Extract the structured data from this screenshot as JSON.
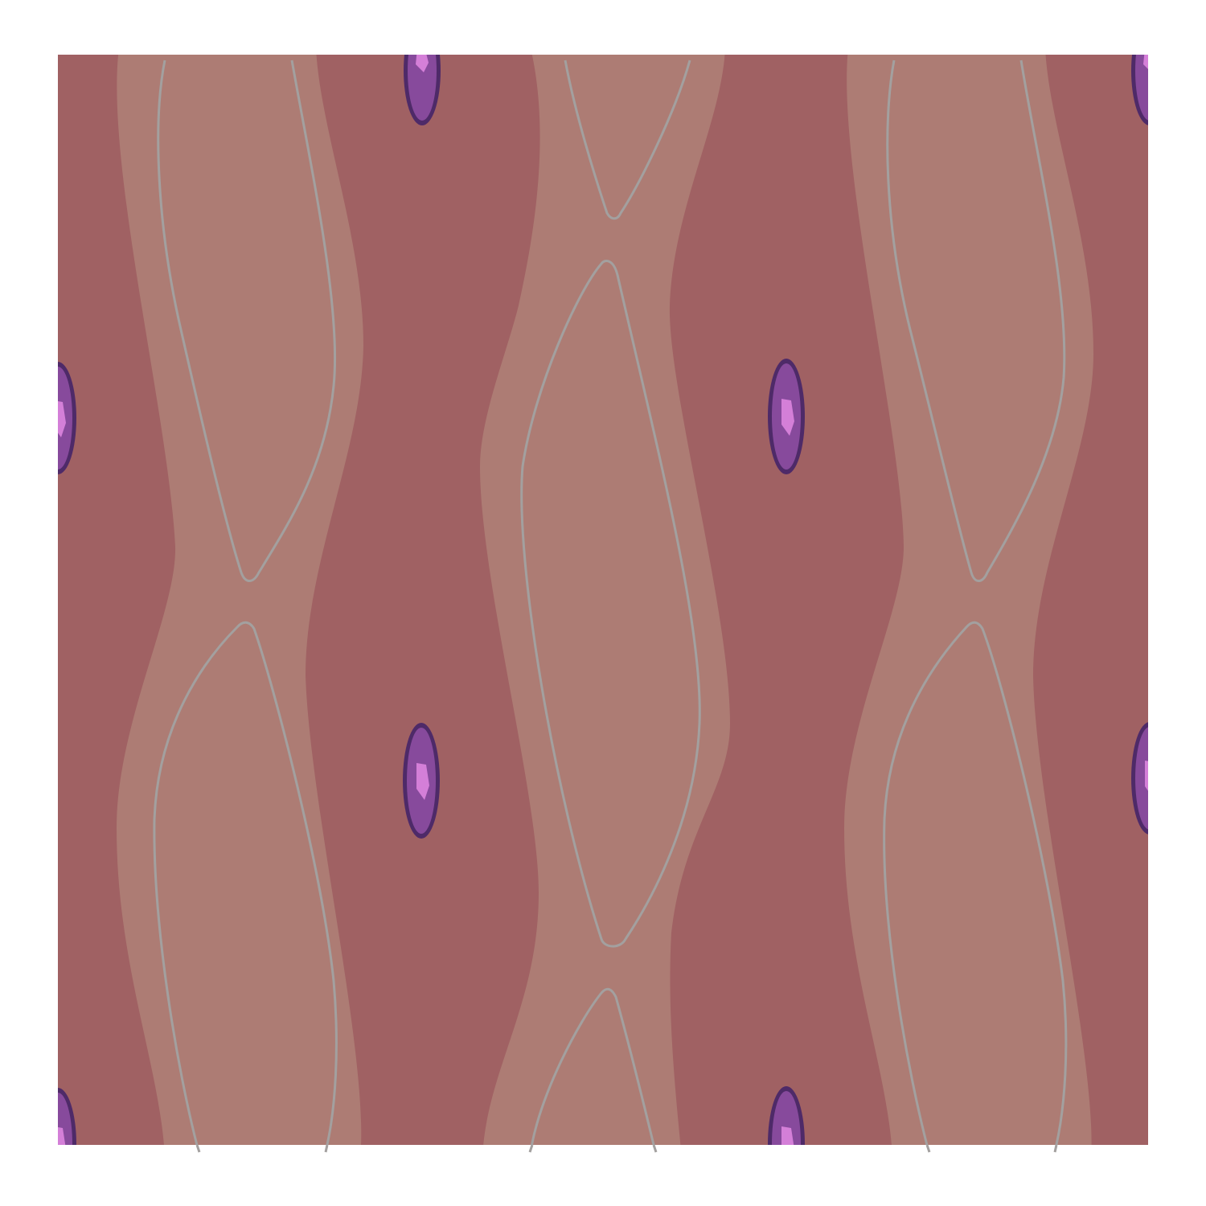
{
  "pattern": {
    "colors": {
      "page_background": "#ffffff",
      "field_background": "#a06163",
      "band_fill": "#ad7c74",
      "vein_stroke": "#a3a09f",
      "nucleus_outer": "#4e2a68",
      "nucleus_mid": "#874a9c",
      "nucleus_highlight": "#d47fd8"
    }
  }
}
